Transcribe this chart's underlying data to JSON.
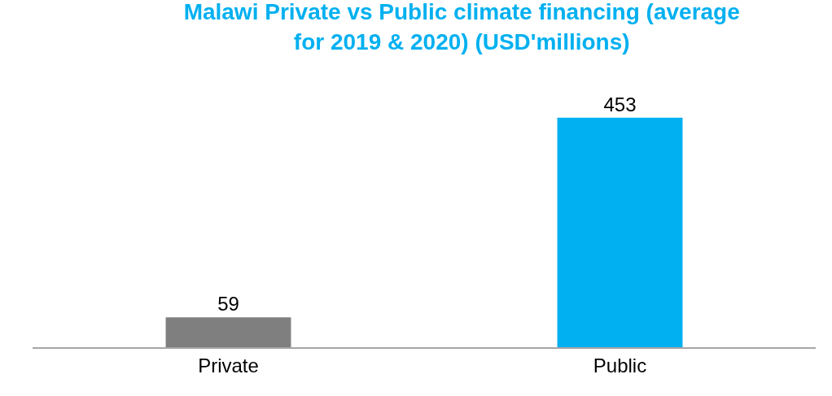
{
  "chart_data": {
    "type": "bar",
    "title": "Malawi Private vs Public climate financing (average for 2019 & 2020) (USD'millions)",
    "categories": [
      "Private",
      "Public"
    ],
    "values": [
      59,
      453
    ],
    "colors": [
      "#7f7f7f",
      "#00b0f0"
    ],
    "data_labels": true
  }
}
